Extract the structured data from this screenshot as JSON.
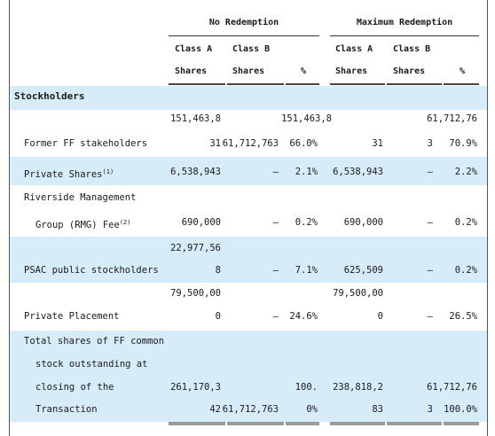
{
  "header": {
    "no_redemption": "No Redemption",
    "max_redemption": "Maximum Redemption",
    "class_a_1": "Class A",
    "class_a_2": "Shares",
    "class_b_1": "Class B",
    "class_b_2": "Shares",
    "pct": "%"
  },
  "section": "Stockholders",
  "rows": {
    "former": {
      "label": "Former FF stakeholders",
      "nr_a_1": "151,463,8",
      "nr_a_2": "31",
      "nr_b": "61,712,763",
      "nr_pct": "66.0%",
      "mr_a_1": "151,463,8",
      "mr_a_2": "31",
      "mr_b_1": "61,712,76",
      "mr_b_2": "3",
      "mr_pct": "70.9%"
    },
    "private_shares": {
      "label": "Private Shares",
      "footnote": "(1)",
      "nr_a": "6,538,943",
      "nr_b": "—",
      "nr_pct": "2.1%",
      "mr_a": "6,538,943",
      "mr_b": "—",
      "mr_pct": "2.2%"
    },
    "rmg": {
      "label_1": "Riverside Management",
      "label_2": "Group (RMG) Fee",
      "footnote": "(2)",
      "nr_a": "690,000",
      "nr_b": "—",
      "nr_pct": "0.2%",
      "mr_a": "690,000",
      "mr_b": "—",
      "mr_pct": "0.2%"
    },
    "psac": {
      "label": "PSAC public stockholders",
      "nr_a_1": "22,977,56",
      "nr_a_2": "8",
      "nr_b": "—",
      "nr_pct": "7.1%",
      "mr_a": "625,509",
      "mr_b": "—",
      "mr_pct": "0.2%"
    },
    "placement": {
      "label": "Private Placement",
      "nr_a_1": "79,500,00",
      "nr_a_2": "0",
      "nr_b": "—",
      "nr_pct": "24.6%",
      "mr_a_1": "79,500,00",
      "mr_a_2": "0",
      "mr_b": "—",
      "mr_pct": "26.5%"
    },
    "total": {
      "label_1": "Total shares of FF common",
      "label_2": "stock outstanding at",
      "label_3": "closing of the",
      "label_4": "Transaction",
      "nr_a_1": "261,170,3",
      "nr_a_2": "42",
      "nr_b": "61,712,763",
      "nr_pct_1": "100.",
      "nr_pct_2": "0%",
      "mr_a_1": "238,818,2",
      "mr_a_2": "83",
      "mr_b_1": "61,712,76",
      "mr_b_2": "3",
      "mr_pct": "100.0%"
    }
  }
}
